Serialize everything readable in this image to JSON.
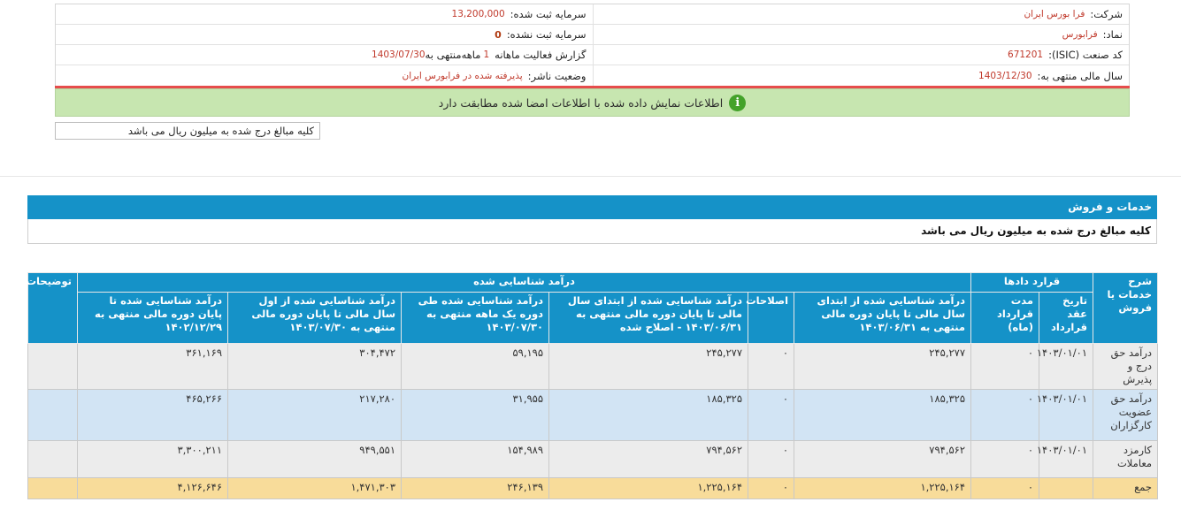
{
  "info": {
    "company_label": "شرکت:",
    "company_value": "فرا بورس ایران",
    "registered_capital_label": "سرمایه ثبت شده:",
    "registered_capital_value": "13,200,000",
    "symbol_label": "نماد:",
    "symbol_value": "فرابورس",
    "unregistered_capital_label": "سرمایه ثبت نشده:",
    "unregistered_capital_value": "0",
    "isic_label": "کد صنعت (ISIC):",
    "isic_value": "671201",
    "report_label": "گزارش فعالیت ماهانه",
    "report_months": "1",
    "report_mid": "ماهه",
    "report_ending": "منتهی به",
    "report_date": "1403/07/30",
    "fiscal_year_label": "سال مالی منتهی به:",
    "fiscal_year_value": "1403/12/30",
    "publisher_status_label": "وضعیت ناشر:",
    "publisher_status_value": "پذیرفته شده در فرابورس ایران"
  },
  "notice": {
    "icon": "info-icon",
    "text": "اطلاعات نمایش داده شده با اطلاعات امضا شده مطابقت دارد"
  },
  "units_note": "کلیه مبالغ درج شده به میلیون ریال می باشد",
  "section": {
    "title": "خدمات و فروش",
    "units_note": "کلیه مبالغ درج شده به میلیون ریال می باشد"
  },
  "table": {
    "headers": {
      "service_desc": "شرح خدمات یا فروش",
      "contracts": "قرارد دادها",
      "recognized_income": "درآمد شناسایی شده",
      "notes": "توضیحات",
      "contract_date": "تاریخ عقد قرارداد",
      "contract_duration": "مدت قرارداد (ماه)",
      "income_to_1403_06_31": "درآمد شناسایی شده از ابتدای سال مالی تا پایان دوره مالی منتهی به ۱۴۰۳/۰۶/۳۱",
      "corrections": "اصلاحات",
      "income_corrected": "درآمد شناسایی شده از ابتدای سال مالی تا پایان دوره مالی منتهی به ۱۴۰۳/۰۶/۳۱ - اصلاح شده",
      "income_one_month": "درآمد شناسایی شده طی دوره یک ماهه منتهی به ۱۴۰۳/۰۷/۳۰",
      "income_ytd": "درآمد شناسایی شده از اول سال مالی تا پایان دوره مالی منتهی به ۱۴۰۳/۰۷/۳۰",
      "income_prev_year": "درآمد شناسایی شده تا پایان دوره مالی منتهی به ۱۴۰۲/۱۲/۲۹"
    },
    "rows": [
      {
        "service": "درآمد حق درج و پذیرش",
        "contract_date": "۱۴۰۳/۰۱/۰۱",
        "duration": "۰",
        "income_to_0631": "۲۴۵,۲۷۷",
        "corrections": "۰",
        "income_corrected": "۲۴۵,۲۷۷",
        "income_one_month": "۵۹,۱۹۵",
        "income_ytd": "۳۰۴,۴۷۲",
        "income_prev_year": "۳۶۱,۱۶۹",
        "notes": ""
      },
      {
        "service": "درآمد حق عضویت کارگزاران",
        "contract_date": "۱۴۰۳/۰۱/۰۱",
        "duration": "۰",
        "income_to_0631": "۱۸۵,۳۲۵",
        "corrections": "۰",
        "income_corrected": "۱۸۵,۳۲۵",
        "income_one_month": "۳۱,۹۵۵",
        "income_ytd": "۲۱۷,۲۸۰",
        "income_prev_year": "۴۶۵,۲۶۶",
        "notes": ""
      },
      {
        "service": "کارمزد معاملات",
        "contract_date": "۱۴۰۳/۰۱/۰۱",
        "duration": "۰",
        "income_to_0631": "۷۹۴,۵۶۲",
        "corrections": "۰",
        "income_corrected": "۷۹۴,۵۶۲",
        "income_one_month": "۱۵۴,۹۸۹",
        "income_ytd": "۹۴۹,۵۵۱",
        "income_prev_year": "۳,۳۰۰,۲۱۱",
        "notes": ""
      }
    ],
    "total": {
      "label": "جمع",
      "contract_date": "",
      "duration": "۰",
      "income_to_0631": "۱,۲۲۵,۱۶۴",
      "corrections": "۰",
      "income_corrected": "۱,۲۲۵,۱۶۴",
      "income_one_month": "۲۴۶,۱۳۹",
      "income_ytd": "۱,۴۷۱,۳۰۳",
      "income_prev_year": "۴,۱۲۶,۶۴۶",
      "notes": ""
    }
  },
  "colors": {
    "header_blue": "#1592c8",
    "notice_green": "#c7e6b0",
    "row_gray": "#ececec",
    "row_blue": "#d2e4f4",
    "total_yellow": "#f8dc9a",
    "value_red": "#c0392b"
  }
}
